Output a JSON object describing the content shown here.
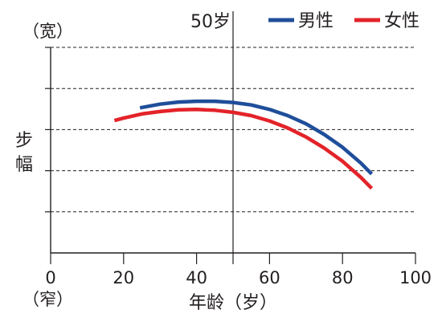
{
  "chart_data": {
    "type": "line",
    "xlabel": "年龄（岁）",
    "ylabel": "步幅",
    "y_top_label": "（宽）",
    "y_bottom_label": "（窄）",
    "xlim": [
      0,
      100
    ],
    "ylim": [
      0,
      5
    ],
    "x_ticks": [
      0,
      20,
      40,
      60,
      80,
      100
    ],
    "y_ticks": [
      0,
      1,
      2,
      3,
      4,
      5
    ],
    "grid": {
      "y": true,
      "x": false,
      "style": "dashed"
    },
    "annotation": {
      "x": 50,
      "label": "50岁"
    },
    "legend_position": "top-right",
    "series": [
      {
        "name": "男性",
        "color": "#1f4e9a",
        "x": [
          24.5,
          30,
          35,
          40,
          45,
          50,
          55,
          60,
          65,
          70,
          75,
          80,
          85,
          88
        ],
        "y": [
          3.53,
          3.62,
          3.67,
          3.69,
          3.69,
          3.66,
          3.6,
          3.49,
          3.34,
          3.14,
          2.88,
          2.57,
          2.19,
          1.92
        ]
      },
      {
        "name": "女性",
        "color": "#e32329",
        "x": [
          17.5,
          20,
          25,
          30,
          35,
          40,
          45,
          50,
          55,
          60,
          65,
          70,
          75,
          80,
          85,
          88
        ],
        "y": [
          3.22,
          3.28,
          3.38,
          3.44,
          3.48,
          3.49,
          3.47,
          3.42,
          3.34,
          3.21,
          3.04,
          2.82,
          2.55,
          2.23,
          1.84,
          1.57
        ]
      }
    ]
  }
}
